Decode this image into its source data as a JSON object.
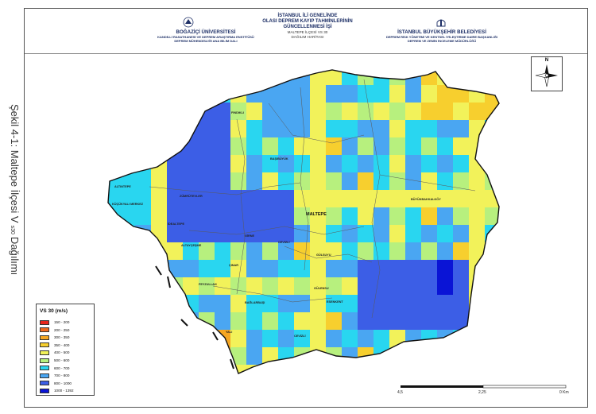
{
  "side_caption": {
    "main": "Şekil 4-1: Maltepe İlçesi V",
    "sub": "s30",
    "tail": "Dağılımı"
  },
  "header": {
    "left": {
      "title": "BOĞAZİÇİ ÜNİVERSİTESİ",
      "line1": "KANDİLLİ RASATHANESİ VE DEPREM ARAŞTIRMA ENSTİTÜSÜ",
      "line2": "DEPREM MÜHENDİSLİĞİ ANA BİLİM DALI"
    },
    "center": {
      "line1": "İSTANBUL İLİ GENELİNDE",
      "line2": "OLASI DEPREM KAYIP TAHMİNLERİNİN",
      "line3": "GÜNCELLENMESİ İŞİ",
      "line4": "MALTEPE İLÇESİ VS 30",
      "line5": "DAĞILIM HARİTASI"
    },
    "right": {
      "title": "İSTANBUL BÜYÜKŞEHİR BELEDİYESİ",
      "line1": "DEPREM RİSK YÖNETİMİ VE KENTSEL İYİLEŞTİRME DAİRE BAŞKANLIĞI",
      "line2": "DEPREM VE ZEMİN İNCELEME MÜDÜRLÜĞÜ"
    }
  },
  "north_arrow": {
    "letter": "N",
    "icon": "north-arrow-icon"
  },
  "legend": {
    "title": "VS 30 (m/s)",
    "classes": [
      {
        "label": "150 - 200",
        "color": "#e8261c"
      },
      {
        "label": "200 - 250",
        "color": "#ef6a1f"
      },
      {
        "label": "300 - 350",
        "color": "#f5a623"
      },
      {
        "label": "350 - 400",
        "color": "#f7cf2e"
      },
      {
        "label": "400 - 500",
        "color": "#f2f25a"
      },
      {
        "label": "500 - 600",
        "color": "#b7f07e"
      },
      {
        "label": "600 - 700",
        "color": "#29d6f0"
      },
      {
        "label": "700 - 800",
        "color": "#4aa6f2"
      },
      {
        "label": "800 - 1000",
        "color": "#3c5ee6"
      },
      {
        "label": "1000 - 1392",
        "color": "#0a14d6"
      }
    ]
  },
  "scale_bar": {
    "labels": [
      "4,5",
      "2,25",
      "0 Km"
    ]
  },
  "districts": [
    "FINDIKLI",
    "BAŞIBÜYÜK",
    "ALTINTEPE",
    "KÜÇÜKYALI MERKEZ",
    "ZÜMRÜTEVLER",
    "MALTEPE",
    "BÜYÜKBAKKALKÖY",
    "İDEALTEPE",
    "GİRNE",
    "CEVİZLİ",
    "ALTAYÇEŞME",
    "ÇINAR",
    "FEYZULLAH",
    "BAĞLARBAŞI",
    "GÜLSUYU",
    "GÜLENSU",
    "ESENKENT",
    "YALI",
    "CEVİZLİ"
  ]
}
